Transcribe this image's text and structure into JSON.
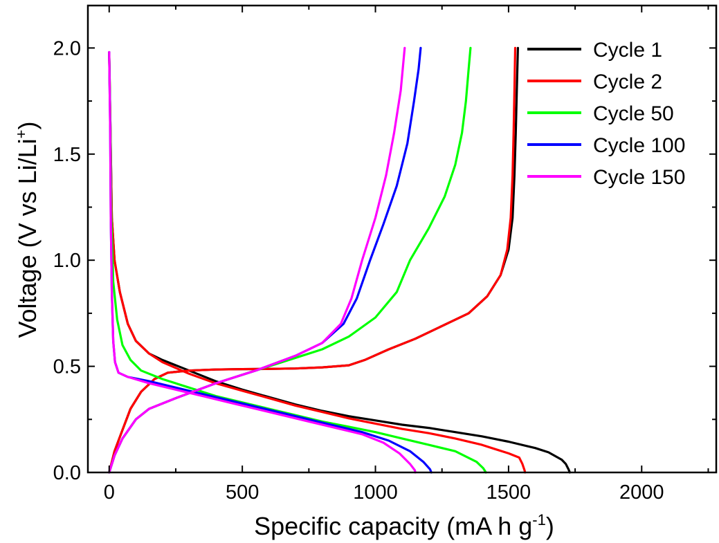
{
  "chart_data": {
    "type": "line",
    "title": "",
    "xlabel": "Specific capacity (mA h g",
    "xlabel_sup": "-1",
    "xlabel_tail": ")",
    "ylabel": "Voltage (V vs Li/Li",
    "ylabel_sup": "+",
    "ylabel_tail": ")",
    "xlim": [
      -80,
      2280
    ],
    "ylim": [
      0,
      2.2
    ],
    "xticks": [
      "0",
      "500",
      "1000",
      "1500",
      "2000"
    ],
    "xtick_values": [
      0,
      500,
      1000,
      1500,
      2000
    ],
    "yticks": [
      "0.0",
      "0.5",
      "1.0",
      "1.5",
      "2.0"
    ],
    "ytick_values": [
      0,
      0.5,
      1.0,
      1.5,
      2.0
    ],
    "grid": false,
    "legend_position": "top-right",
    "series": [
      {
        "name": "Cycle 1",
        "color": "#000000",
        "discharge": [
          [
            0,
            1.98
          ],
          [
            5,
            1.6
          ],
          [
            10,
            1.2
          ],
          [
            20,
            1.0
          ],
          [
            40,
            0.85
          ],
          [
            70,
            0.7
          ],
          [
            100,
            0.62
          ],
          [
            150,
            0.56
          ],
          [
            200,
            0.53
          ],
          [
            300,
            0.48
          ],
          [
            400,
            0.43
          ],
          [
            500,
            0.39
          ],
          [
            600,
            0.355
          ],
          [
            700,
            0.32
          ],
          [
            800,
            0.29
          ],
          [
            900,
            0.265
          ],
          [
            1000,
            0.245
          ],
          [
            1100,
            0.225
          ],
          [
            1200,
            0.21
          ],
          [
            1300,
            0.19
          ],
          [
            1400,
            0.17
          ],
          [
            1500,
            0.145
          ],
          [
            1600,
            0.115
          ],
          [
            1650,
            0.095
          ],
          [
            1700,
            0.06
          ],
          [
            1715,
            0.04
          ],
          [
            1725,
            0.015
          ],
          [
            1730,
            0
          ]
        ],
        "charge": [
          [
            0,
            0
          ],
          [
            20,
            0.1
          ],
          [
            50,
            0.2
          ],
          [
            80,
            0.3
          ],
          [
            120,
            0.38
          ],
          [
            170,
            0.44
          ],
          [
            220,
            0.47
          ],
          [
            300,
            0.48
          ],
          [
            400,
            0.485
          ],
          [
            500,
            0.487
          ],
          [
            600,
            0.488
          ],
          [
            700,
            0.49
          ],
          [
            800,
            0.495
          ],
          [
            900,
            0.505
          ],
          [
            960,
            0.53
          ],
          [
            1050,
            0.58
          ],
          [
            1150,
            0.63
          ],
          [
            1250,
            0.69
          ],
          [
            1350,
            0.75
          ],
          [
            1420,
            0.83
          ],
          [
            1470,
            0.93
          ],
          [
            1500,
            1.05
          ],
          [
            1515,
            1.2
          ],
          [
            1522,
            1.4
          ],
          [
            1527,
            1.6
          ],
          [
            1531,
            1.8
          ],
          [
            1535,
            2.0
          ]
        ]
      },
      {
        "name": "Cycle 2",
        "color": "#ff0000",
        "discharge": [
          [
            0,
            1.97
          ],
          [
            5,
            1.6
          ],
          [
            10,
            1.2
          ],
          [
            20,
            1.0
          ],
          [
            40,
            0.85
          ],
          [
            70,
            0.7
          ],
          [
            100,
            0.62
          ],
          [
            150,
            0.56
          ],
          [
            200,
            0.52
          ],
          [
            300,
            0.465
          ],
          [
            400,
            0.42
          ],
          [
            500,
            0.385
          ],
          [
            600,
            0.35
          ],
          [
            700,
            0.315
          ],
          [
            800,
            0.285
          ],
          [
            900,
            0.255
          ],
          [
            1000,
            0.23
          ],
          [
            1100,
            0.205
          ],
          [
            1200,
            0.185
          ],
          [
            1300,
            0.16
          ],
          [
            1400,
            0.13
          ],
          [
            1450,
            0.11
          ],
          [
            1500,
            0.09
          ],
          [
            1540,
            0.07
          ],
          [
            1552,
            0.04
          ],
          [
            1560,
            0.01
          ],
          [
            1562,
            0
          ]
        ],
        "charge": [
          [
            0,
            0
          ],
          [
            20,
            0.1
          ],
          [
            50,
            0.2
          ],
          [
            80,
            0.3
          ],
          [
            120,
            0.38
          ],
          [
            170,
            0.44
          ],
          [
            220,
            0.47
          ],
          [
            300,
            0.48
          ],
          [
            400,
            0.485
          ],
          [
            500,
            0.487
          ],
          [
            600,
            0.488
          ],
          [
            700,
            0.49
          ],
          [
            800,
            0.495
          ],
          [
            900,
            0.505
          ],
          [
            960,
            0.53
          ],
          [
            1050,
            0.58
          ],
          [
            1150,
            0.63
          ],
          [
            1250,
            0.69
          ],
          [
            1350,
            0.75
          ],
          [
            1420,
            0.83
          ],
          [
            1470,
            0.93
          ],
          [
            1495,
            1.05
          ],
          [
            1508,
            1.2
          ],
          [
            1515,
            1.4
          ],
          [
            1519,
            1.6
          ],
          [
            1522,
            1.8
          ],
          [
            1525,
            2.0
          ]
        ]
      },
      {
        "name": "Cycle 50",
        "color": "#00ff00",
        "discharge": [
          [
            0,
            1.98
          ],
          [
            5,
            1.6
          ],
          [
            8,
            1.2
          ],
          [
            15,
            0.9
          ],
          [
            30,
            0.72
          ],
          [
            50,
            0.6
          ],
          [
            80,
            0.53
          ],
          [
            120,
            0.48
          ],
          [
            200,
            0.44
          ],
          [
            300,
            0.4
          ],
          [
            400,
            0.36
          ],
          [
            500,
            0.33
          ],
          [
            600,
            0.3
          ],
          [
            700,
            0.27
          ],
          [
            800,
            0.24
          ],
          [
            900,
            0.215
          ],
          [
            1000,
            0.19
          ],
          [
            1100,
            0.16
          ],
          [
            1200,
            0.13
          ],
          [
            1300,
            0.1
          ],
          [
            1380,
            0.05
          ],
          [
            1405,
            0.02
          ],
          [
            1415,
            0
          ]
        ],
        "charge": [
          [
            0,
            0
          ],
          [
            20,
            0.08
          ],
          [
            50,
            0.16
          ],
          [
            100,
            0.25
          ],
          [
            150,
            0.3
          ],
          [
            250,
            0.35
          ],
          [
            400,
            0.42
          ],
          [
            550,
            0.48
          ],
          [
            700,
            0.54
          ],
          [
            800,
            0.58
          ],
          [
            900,
            0.64
          ],
          [
            1000,
            0.73
          ],
          [
            1080,
            0.85
          ],
          [
            1130,
            1.0
          ],
          [
            1200,
            1.15
          ],
          [
            1260,
            1.3
          ],
          [
            1300,
            1.45
          ],
          [
            1325,
            1.6
          ],
          [
            1340,
            1.75
          ],
          [
            1350,
            1.9
          ],
          [
            1357,
            2.0
          ]
        ]
      },
      {
        "name": "Cycle 100",
        "color": "#0000ff",
        "discharge": [
          [
            0,
            1.98
          ],
          [
            4,
            1.6
          ],
          [
            6,
            1.2
          ],
          [
            10,
            0.85
          ],
          [
            15,
            0.62
          ],
          [
            22,
            0.52
          ],
          [
            35,
            0.47
          ],
          [
            70,
            0.45
          ],
          [
            150,
            0.43
          ],
          [
            250,
            0.4
          ],
          [
            350,
            0.37
          ],
          [
            450,
            0.34
          ],
          [
            550,
            0.31
          ],
          [
            650,
            0.28
          ],
          [
            750,
            0.25
          ],
          [
            850,
            0.22
          ],
          [
            950,
            0.19
          ],
          [
            1050,
            0.15
          ],
          [
            1130,
            0.1
          ],
          [
            1180,
            0.05
          ],
          [
            1205,
            0.015
          ],
          [
            1210,
            0
          ]
        ],
        "charge": [
          [
            0,
            0
          ],
          [
            20,
            0.08
          ],
          [
            50,
            0.16
          ],
          [
            100,
            0.25
          ],
          [
            150,
            0.3
          ],
          [
            250,
            0.35
          ],
          [
            400,
            0.42
          ],
          [
            550,
            0.48
          ],
          [
            700,
            0.55
          ],
          [
            800,
            0.61
          ],
          [
            880,
            0.7
          ],
          [
            930,
            0.82
          ],
          [
            980,
            1.0
          ],
          [
            1030,
            1.17
          ],
          [
            1080,
            1.35
          ],
          [
            1120,
            1.55
          ],
          [
            1145,
            1.75
          ],
          [
            1162,
            1.9
          ],
          [
            1170,
            2.0
          ]
        ]
      },
      {
        "name": "Cycle 150",
        "color": "#ff00ff",
        "discharge": [
          [
            0,
            1.98
          ],
          [
            4,
            1.6
          ],
          [
            6,
            1.2
          ],
          [
            10,
            0.85
          ],
          [
            15,
            0.62
          ],
          [
            22,
            0.52
          ],
          [
            35,
            0.47
          ],
          [
            70,
            0.45
          ],
          [
            150,
            0.42
          ],
          [
            250,
            0.39
          ],
          [
            350,
            0.36
          ],
          [
            450,
            0.33
          ],
          [
            550,
            0.3
          ],
          [
            650,
            0.27
          ],
          [
            750,
            0.24
          ],
          [
            850,
            0.21
          ],
          [
            950,
            0.18
          ],
          [
            1030,
            0.14
          ],
          [
            1090,
            0.09
          ],
          [
            1130,
            0.04
          ],
          [
            1148,
            0.01
          ],
          [
            1150,
            0
          ]
        ],
        "charge": [
          [
            0,
            0
          ],
          [
            20,
            0.08
          ],
          [
            50,
            0.16
          ],
          [
            100,
            0.25
          ],
          [
            150,
            0.3
          ],
          [
            250,
            0.35
          ],
          [
            400,
            0.42
          ],
          [
            550,
            0.48
          ],
          [
            700,
            0.55
          ],
          [
            800,
            0.61
          ],
          [
            870,
            0.7
          ],
          [
            910,
            0.82
          ],
          [
            950,
            1.0
          ],
          [
            1000,
            1.2
          ],
          [
            1040,
            1.4
          ],
          [
            1070,
            1.6
          ],
          [
            1095,
            1.8
          ],
          [
            1110,
            2.0
          ]
        ]
      }
    ]
  }
}
